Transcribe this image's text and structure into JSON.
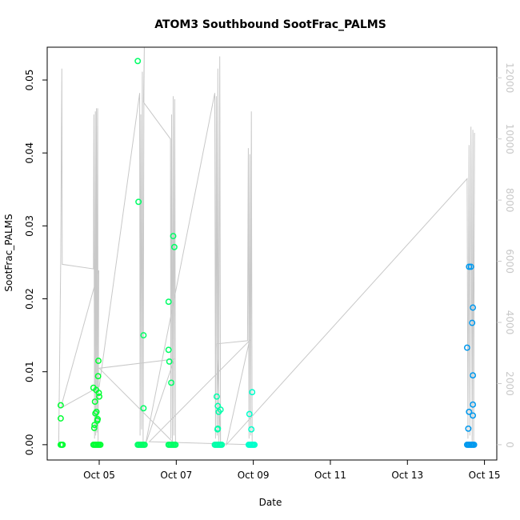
{
  "chart_data": {
    "type": "scatter",
    "title": "ATOM3 Southbound SootFrac_PALMS",
    "xlabel": "Date",
    "ylabel": "SootFrac_PALMS",
    "x_ticks": [
      {
        "label": "Oct 05",
        "value": 5
      },
      {
        "label": "Oct 07",
        "value": 7
      },
      {
        "label": "Oct 09",
        "value": 9
      },
      {
        "label": "Oct 11",
        "value": 11
      },
      {
        "label": "Oct 13",
        "value": 13
      },
      {
        "label": "Oct 15",
        "value": 15
      }
    ],
    "xlim": [
      3.65,
      15.32
    ],
    "ylim": [
      -0.0021,
      0.0545
    ],
    "y_ticks": [
      {
        "label": "0.00",
        "value": 0
      },
      {
        "label": "0.01",
        "value": 0.01
      },
      {
        "label": "0.02",
        "value": 0.02
      },
      {
        "label": "0.03",
        "value": 0.03
      },
      {
        "label": "0.04",
        "value": 0.04
      },
      {
        "label": "0.05",
        "value": 0.05
      }
    ],
    "y2lim": [
      -500,
      13000
    ],
    "y2_ticks": [
      {
        "label": "0",
        "value": 0
      },
      {
        "label": "2000",
        "value": 2000
      },
      {
        "label": "4000",
        "value": 4000
      },
      {
        "label": "6000",
        "value": 6000
      },
      {
        "label": "8000",
        "value": 8000
      },
      {
        "label": "10000",
        "value": 10000
      },
      {
        "label": "12000",
        "value": 12000
      }
    ],
    "grid": false,
    "colors": {
      "altitude_line": "#c8c8c8",
      "right_axis": "#c8c8c8",
      "point_colors": [
        "#00ff33",
        "#00ff66",
        "#00ffaa",
        "#00ffcc",
        "#0099ee"
      ]
    },
    "altitude_series": {
      "name": "",
      "path": [
        [
          3.95,
          0
        ],
        [
          4.0,
          6000
        ],
        [
          4.03,
          12300
        ],
        [
          4.04,
          5900
        ],
        [
          4.85,
          5750
        ],
        [
          4.86,
          10800
        ],
        [
          4.88,
          200
        ],
        [
          4.9,
          10900
        ],
        [
          4.91,
          300
        ],
        [
          4.93,
          11000
        ],
        [
          4.94,
          400
        ],
        [
          4.96,
          11000
        ],
        [
          4.97,
          100
        ],
        [
          4.99,
          5700
        ],
        [
          4.0,
          1200
        ],
        [
          5.0,
          1900
        ],
        [
          6.05,
          11500
        ],
        [
          6.06,
          300
        ],
        [
          6.08,
          10800
        ],
        [
          6.1,
          500
        ],
        [
          6.12,
          12200
        ],
        [
          6.14,
          0
        ],
        [
          6.16,
          11500
        ],
        [
          6.17,
          13000
        ],
        [
          6.15,
          11200
        ],
        [
          6.85,
          10000
        ],
        [
          6.86,
          200
        ],
        [
          6.88,
          10800
        ],
        [
          6.9,
          100
        ],
        [
          6.92,
          11400
        ],
        [
          6.94,
          300
        ],
        [
          6.96,
          11300
        ],
        [
          6.98,
          0
        ],
        [
          5.0,
          2500
        ],
        [
          6.95,
          2800
        ],
        [
          6.2,
          0
        ],
        [
          8.0,
          11500
        ],
        [
          8.02,
          200
        ],
        [
          8.04,
          11400
        ],
        [
          8.06,
          300
        ],
        [
          8.08,
          12300
        ],
        [
          8.1,
          100
        ],
        [
          8.13,
          12700
        ],
        [
          8.15,
          0
        ],
        [
          8.05,
          3300
        ],
        [
          8.85,
          3400
        ],
        [
          8.87,
          9700
        ],
        [
          8.89,
          200
        ],
        [
          8.91,
          9500
        ],
        [
          8.93,
          300
        ],
        [
          8.95,
          10900
        ],
        [
          8.97,
          0
        ],
        [
          6.3,
          100
        ],
        [
          8.9,
          3400
        ],
        [
          8.3,
          0
        ],
        [
          14.55,
          8700
        ],
        [
          14.57,
          200
        ],
        [
          14.6,
          9800
        ],
        [
          14.62,
          300
        ],
        [
          14.65,
          10400
        ],
        [
          14.68,
          0
        ],
        [
          14.7,
          10300
        ],
        [
          14.72,
          100
        ],
        [
          14.74,
          10200
        ]
      ]
    },
    "series": [
      {
        "name": "",
        "color": "#00ff33",
        "points": [
          [
            4.0,
            0.0054
          ],
          [
            4.0,
            0.0036
          ],
          [
            4.0,
            0
          ],
          [
            4.03,
            0
          ],
          [
            4.05,
            0
          ],
          [
            4.85,
            0.0078
          ],
          [
            4.87,
            0.0023
          ],
          [
            4.88,
            0.0027
          ],
          [
            4.89,
            0.0059
          ],
          [
            4.9,
            0.0043
          ],
          [
            4.92,
            0.0075
          ],
          [
            4.93,
            0.0045
          ],
          [
            4.95,
            0.0033
          ],
          [
            4.96,
            0.0035
          ],
          [
            4.97,
            0.0094
          ],
          [
            4.98,
            0.0115
          ],
          [
            5.0,
            0.0066
          ],
          [
            4.99,
            0.0071
          ],
          [
            4.85,
            0
          ],
          [
            4.88,
            0
          ],
          [
            4.91,
            0
          ],
          [
            4.94,
            0
          ],
          [
            4.97,
            0
          ],
          [
            5.0,
            0
          ],
          [
            5.03,
            0
          ]
        ]
      },
      {
        "name": "",
        "color": "#00ff66",
        "points": [
          [
            6.0,
            0.0526
          ],
          [
            6.02,
            0.0333
          ],
          [
            6.15,
            0.015
          ],
          [
            6.15,
            0.005
          ],
          [
            6.0,
            0
          ],
          [
            6.03,
            0
          ],
          [
            6.06,
            0
          ],
          [
            6.09,
            0
          ],
          [
            6.12,
            0
          ],
          [
            6.15,
            0
          ],
          [
            6.18,
            0
          ],
          [
            6.8,
            0.0196
          ],
          [
            6.8,
            0.013
          ],
          [
            6.82,
            0.0114
          ],
          [
            6.87,
            0.0085
          ],
          [
            6.92,
            0.0286
          ],
          [
            6.95,
            0.0271
          ],
          [
            6.8,
            0
          ],
          [
            6.83,
            0
          ],
          [
            6.86,
            0
          ],
          [
            6.89,
            0
          ],
          [
            6.92,
            0
          ],
          [
            6.95,
            0
          ],
          [
            6.98,
            0
          ]
        ]
      },
      {
        "name": "",
        "color": "#00ffaa",
        "points": [
          [
            8.05,
            0.0066
          ],
          [
            8.08,
            0.0053
          ],
          [
            8.1,
            0.0045
          ],
          [
            8.15,
            0.0048
          ],
          [
            8.08,
            0.0022
          ],
          [
            8.07,
            0.0021
          ],
          [
            8.0,
            0
          ],
          [
            8.03,
            0
          ],
          [
            8.06,
            0
          ],
          [
            8.09,
            0
          ],
          [
            8.12,
            0
          ],
          [
            8.15,
            0
          ],
          [
            8.18,
            0
          ]
        ]
      },
      {
        "name": "",
        "color": "#00ffcc",
        "points": [
          [
            8.9,
            0.0042
          ],
          [
            8.97,
            0.0072
          ],
          [
            8.95,
            0.0021
          ],
          [
            8.88,
            0
          ],
          [
            8.91,
            0
          ],
          [
            8.94,
            0
          ],
          [
            8.97,
            0
          ],
          [
            9.0,
            0
          ],
          [
            9.03,
            0
          ]
        ]
      },
      {
        "name": "",
        "color": "#0099ee",
        "points": [
          [
            14.6,
            0.0244
          ],
          [
            14.65,
            0.0244
          ],
          [
            14.55,
            0.0133
          ],
          [
            14.7,
            0.0188
          ],
          [
            14.68,
            0.0167
          ],
          [
            14.7,
            0.0095
          ],
          [
            14.7,
            0.0055
          ],
          [
            14.6,
            0.0045
          ],
          [
            14.7,
            0.004
          ],
          [
            14.58,
            0.0022
          ],
          [
            14.55,
            0
          ],
          [
            14.58,
            0
          ],
          [
            14.61,
            0
          ],
          [
            14.64,
            0
          ],
          [
            14.67,
            0
          ],
          [
            14.7,
            0
          ],
          [
            14.73,
            0
          ]
        ]
      }
    ]
  }
}
